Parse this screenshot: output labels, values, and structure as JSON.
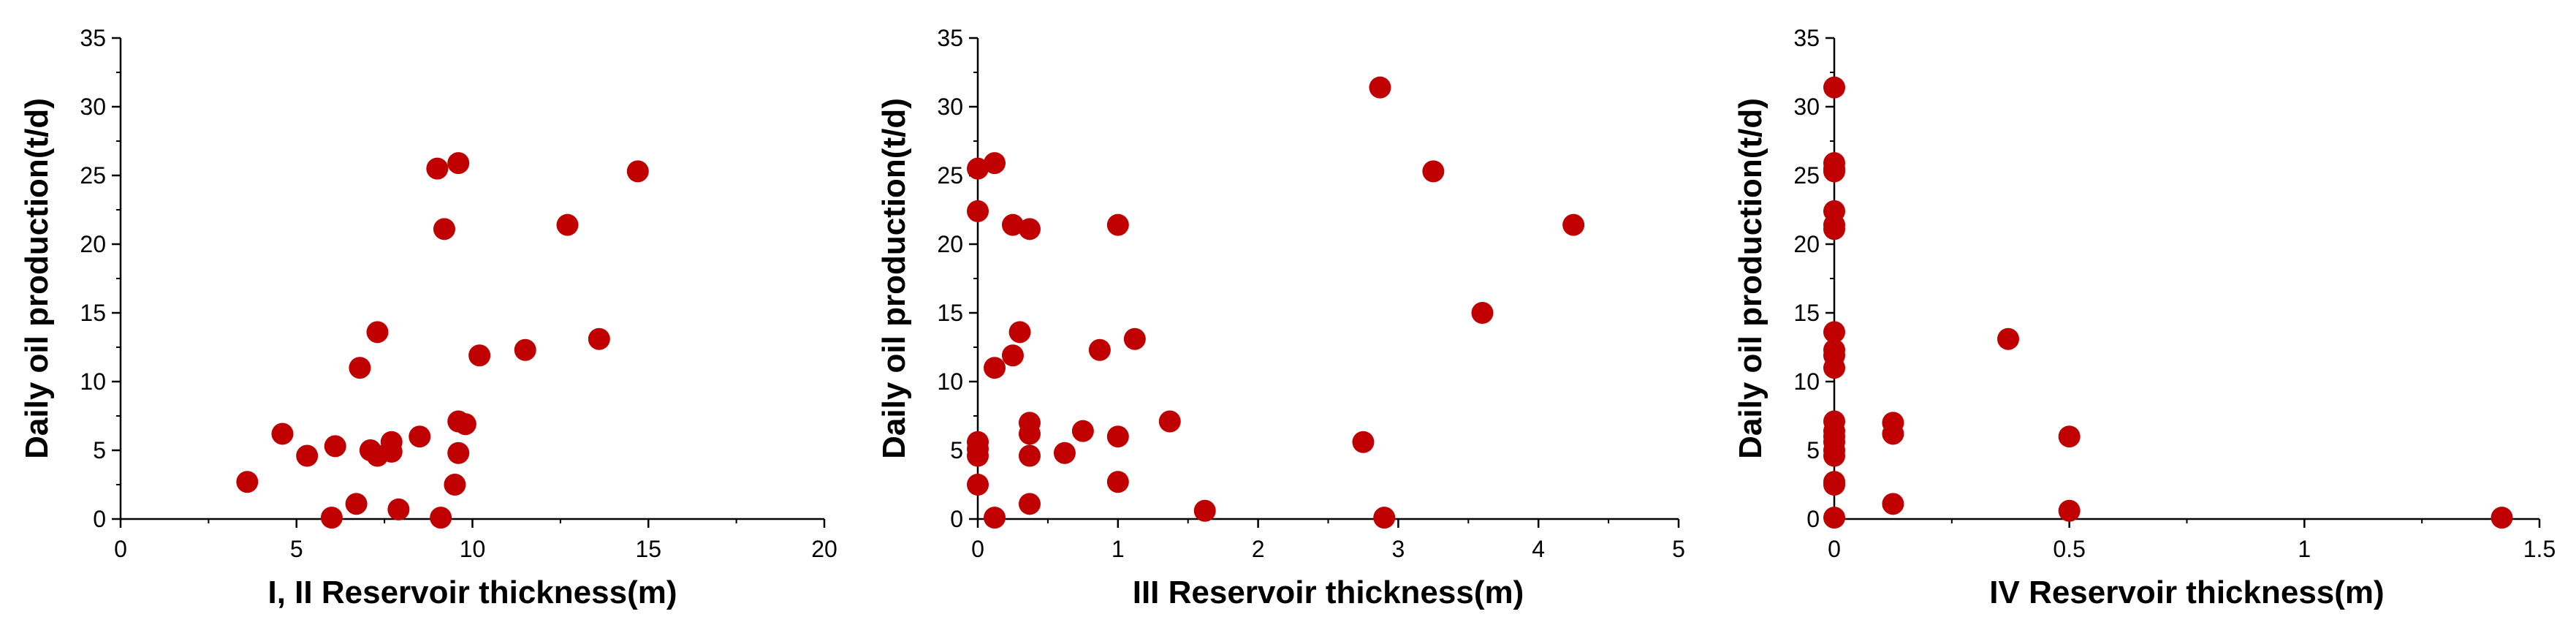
{
  "colors": {
    "marker": "#c00000",
    "axis": "#000000",
    "background": "#ffffff"
  },
  "chart_data": [
    {
      "type": "scatter",
      "title": "",
      "xlabel": "I, II Reservoir thickness(m)",
      "ylabel": "Daily oil production(t/d)",
      "xlim": [
        0,
        20
      ],
      "ylim": [
        0,
        35
      ],
      "xticks": [
        "0",
        "5",
        "10",
        "15",
        "20"
      ],
      "yticks": [
        "0",
        "5",
        "10",
        "15",
        "20",
        "25",
        "30",
        "35"
      ],
      "grid": false,
      "points": [
        [
          3.6,
          2.7
        ],
        [
          4.6,
          6.2
        ],
        [
          5.3,
          4.6
        ],
        [
          6.0,
          0.1
        ],
        [
          6.1,
          5.3
        ],
        [
          6.7,
          1.1
        ],
        [
          6.8,
          11.0
        ],
        [
          7.1,
          5.0
        ],
        [
          7.3,
          4.6
        ],
        [
          7.3,
          13.6
        ],
        [
          7.7,
          5.6
        ],
        [
          7.7,
          4.9
        ],
        [
          7.9,
          0.7
        ],
        [
          8.5,
          6.0
        ],
        [
          9.0,
          25.5
        ],
        [
          9.1,
          0.1
        ],
        [
          9.2,
          21.1
        ],
        [
          9.5,
          2.5
        ],
        [
          9.6,
          25.9
        ],
        [
          9.6,
          4.8
        ],
        [
          9.6,
          7.1
        ],
        [
          9.8,
          6.9
        ],
        [
          10.2,
          11.9
        ],
        [
          11.5,
          12.3
        ],
        [
          12.7,
          21.4
        ],
        [
          13.6,
          13.1
        ],
        [
          14.7,
          25.3
        ]
      ]
    },
    {
      "type": "scatter",
      "title": "",
      "xlabel": "III Reservoir thickness(m)",
      "ylabel": "Daily oil production(t/d)",
      "xlim": [
        0,
        5
      ],
      "ylim": [
        0,
        35
      ],
      "xticks": [
        "0",
        "1",
        "2",
        "3",
        "4",
        "5"
      ],
      "yticks": [
        "0",
        "5",
        "10",
        "15",
        "20",
        "25",
        "30",
        "35"
      ],
      "grid": false,
      "points": [
        [
          0.0,
          25.5
        ],
        [
          0.0,
          22.4
        ],
        [
          0.0,
          5.6
        ],
        [
          0.0,
          5.1
        ],
        [
          0.0,
          4.6
        ],
        [
          0.0,
          2.5
        ],
        [
          0.12,
          25.9
        ],
        [
          0.12,
          11.0
        ],
        [
          0.12,
          0.1
        ],
        [
          0.25,
          21.4
        ],
        [
          0.25,
          11.9
        ],
        [
          0.3,
          13.6
        ],
        [
          0.37,
          21.1
        ],
        [
          0.37,
          7.0
        ],
        [
          0.37,
          6.2
        ],
        [
          0.37,
          4.6
        ],
        [
          0.37,
          1.1
        ],
        [
          0.62,
          4.8
        ],
        [
          0.75,
          6.4
        ],
        [
          0.87,
          12.3
        ],
        [
          1.0,
          21.4
        ],
        [
          1.0,
          6.0
        ],
        [
          1.0,
          2.7
        ],
        [
          1.12,
          13.1
        ],
        [
          1.37,
          7.1
        ],
        [
          1.62,
          0.6
        ],
        [
          2.75,
          5.6
        ],
        [
          2.87,
          31.4
        ],
        [
          2.9,
          0.1
        ],
        [
          3.25,
          25.3
        ],
        [
          3.6,
          15.0
        ],
        [
          4.25,
          21.4
        ]
      ]
    },
    {
      "type": "scatter",
      "title": "",
      "xlabel": "IV Reservoir thickness(m)",
      "ylabel": "Daily oil production(t/d)",
      "xlim": [
        0,
        1.5
      ],
      "ylim": [
        0,
        35
      ],
      "xticks": [
        "0",
        "0.5",
        "1",
        "1.5"
      ],
      "yticks": [
        "0",
        "5",
        "10",
        "15",
        "20",
        "25",
        "30",
        "35"
      ],
      "grid": false,
      "points": [
        [
          0.0,
          31.4
        ],
        [
          0.0,
          25.9
        ],
        [
          0.0,
          25.5
        ],
        [
          0.0,
          25.3
        ],
        [
          0.0,
          22.4
        ],
        [
          0.0,
          21.4
        ],
        [
          0.0,
          21.1
        ],
        [
          0.0,
          13.6
        ],
        [
          0.0,
          12.3
        ],
        [
          0.0,
          11.9
        ],
        [
          0.0,
          11.0
        ],
        [
          0.0,
          7.1
        ],
        [
          0.0,
          6.4
        ],
        [
          0.0,
          6.0
        ],
        [
          0.0,
          5.6
        ],
        [
          0.0,
          5.0
        ],
        [
          0.0,
          4.6
        ],
        [
          0.0,
          2.7
        ],
        [
          0.0,
          2.5
        ],
        [
          0.0,
          0.1
        ],
        [
          0.125,
          7.0
        ],
        [
          0.125,
          6.2
        ],
        [
          0.125,
          1.1
        ],
        [
          0.37,
          13.1
        ],
        [
          0.5,
          6.0
        ],
        [
          0.5,
          0.6
        ],
        [
          1.42,
          0.1
        ]
      ]
    }
  ]
}
